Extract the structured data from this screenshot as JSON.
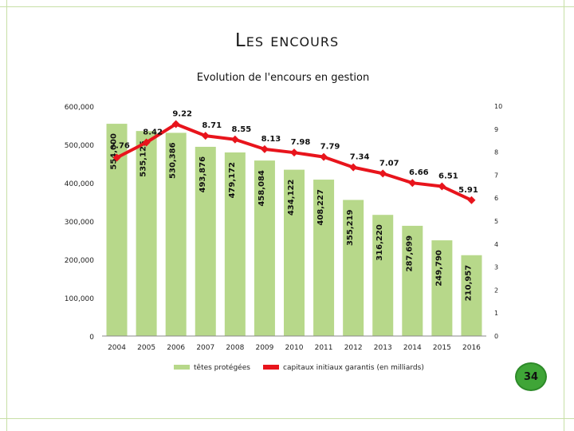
{
  "slide": {
    "title": "Les encours",
    "page_number": "34"
  },
  "colors": {
    "bar": "#b7d88a",
    "line": "#e8141c",
    "frame": "#c7dfa6",
    "badge": "#3fa537"
  },
  "chart_data": {
    "type": "bar+line",
    "title": "Evolution de l'encours en gestion",
    "categories": [
      "2004",
      "2005",
      "2006",
      "2007",
      "2008",
      "2009",
      "2010",
      "2011",
      "2012",
      "2013",
      "2014",
      "2015",
      "2016"
    ],
    "series": [
      {
        "name": "têtes protégées",
        "type": "bar",
        "axis": "left",
        "values": [
          554000,
          535125,
          530386,
          493876,
          479172,
          458084,
          434122,
          408227,
          355219,
          316220,
          287699,
          249790,
          210957
        ],
        "labels": [
          "554,000",
          "535,125",
          "530,386",
          "493,876",
          "479,172",
          "458,084",
          "434,122",
          "408,227",
          "355,219",
          "316,220",
          "287,699",
          "249,790",
          "210,957"
        ]
      },
      {
        "name": "capitaux initiaux garantis (en milliards)",
        "type": "line",
        "axis": "right",
        "values": [
          7.76,
          8.42,
          9.22,
          8.71,
          8.55,
          8.13,
          7.98,
          7.79,
          7.34,
          7.07,
          6.66,
          6.51,
          5.91
        ],
        "labels": [
          "7.76",
          "8.42",
          "9.22",
          "8.71",
          "8.55",
          "8.13",
          "7.98",
          "7.79",
          "7.34",
          "7.07",
          "6.66",
          "6.51",
          "5.91"
        ]
      }
    ],
    "y_left": {
      "range": [
        0,
        600000
      ],
      "ticks": [
        0,
        100000,
        200000,
        300000,
        400000,
        500000,
        600000
      ],
      "tick_labels": [
        "0",
        "100,000",
        "200,000",
        "300,000",
        "400,000",
        "500,000",
        "600,000"
      ]
    },
    "y_right": {
      "range": [
        0,
        10
      ],
      "ticks": [
        0,
        1,
        2,
        3,
        4,
        5,
        6,
        7,
        8,
        9,
        10
      ],
      "tick_labels": [
        "0",
        "1",
        "2",
        "3",
        "4",
        "5",
        "6",
        "7",
        "8",
        "9",
        "10"
      ]
    },
    "legend_position": "bottom",
    "grid": false
  }
}
